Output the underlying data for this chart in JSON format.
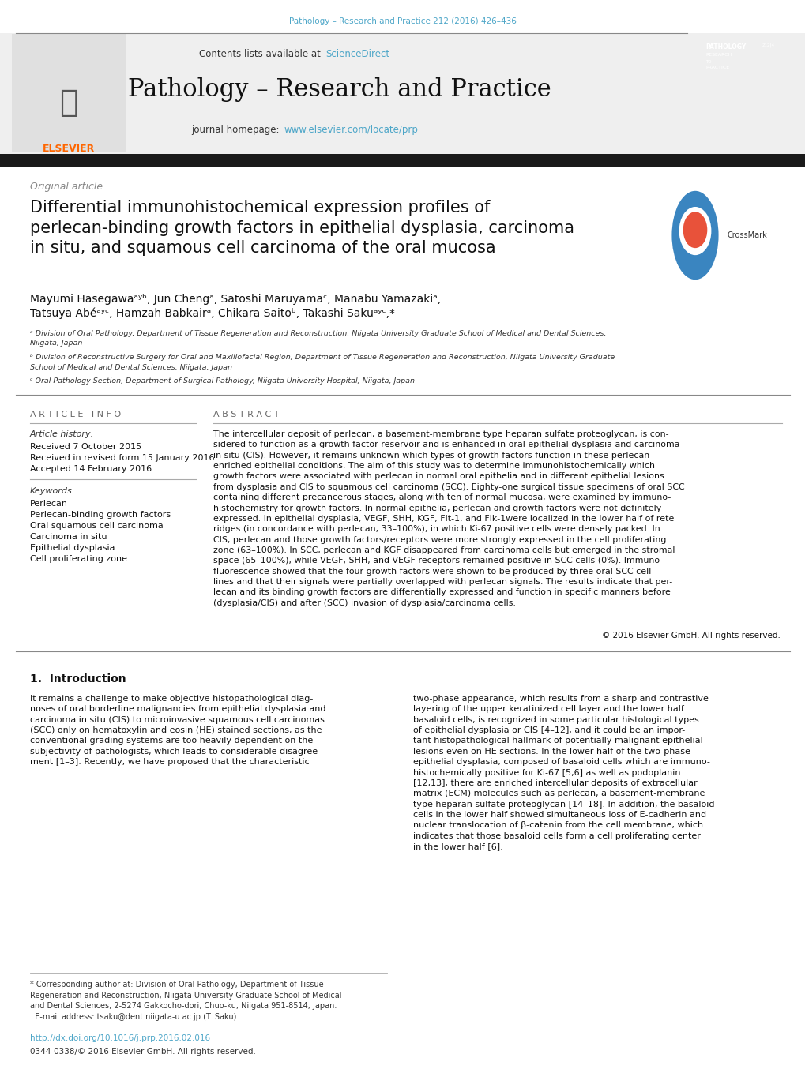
{
  "background_color": "#ffffff",
  "page_width": 10.2,
  "page_height": 13.59,
  "dpi": 100,
  "header_journal_ref": "Pathology – Research and Practice 212 (2016) 426–436",
  "header_journal_ref_color": "#4da6c8",
  "journal_name": "Pathology – Research and Practice",
  "contents_sciencedirect_color": "#4da6c8",
  "journal_homepage_color": "#4da6c8",
  "elsevier_color": "#FF6600",
  "header_band_color": "#efefef",
  "dark_band_color": "#1a1a1a",
  "original_article_text": "Original article",
  "original_article_color": "#888888",
  "article_title": "Differential immunohistochemical expression profiles of\nperlecan-binding growth factors in epithelial dysplasia, carcinoma\nin situ, and squamous cell carcinoma of the oral mucosa",
  "article_title_color": "#111111",
  "authors_line1": "Mayumi Hasegawaᵃʸᵇ, Jun Chengᵃ, Satoshi Maruyamaᶜ, Manabu Yamazakiᵃ,",
  "authors_line2": "Tatsuya Abéᵃʸᶜ, Hamzah Babkairᵃ, Chikara Saitoᵇ, Takashi Sakuᵃʸᶜ,*",
  "affil_a": "ᵃ Division of Oral Pathology, Department of Tissue Regeneration and Reconstruction, Niigata University Graduate School of Medical and Dental Sciences,\nNiigata, Japan",
  "affil_b": "ᵇ Division of Reconstructive Surgery for Oral and Maxillofacial Region, Department of Tissue Regeneration and Reconstruction, Niigata University Graduate\nSchool of Medical and Dental Sciences, Niigata, Japan",
  "affil_c": "ᶜ Oral Pathology Section, Department of Surgical Pathology, Niigata University Hospital, Niigata, Japan",
  "affil_color": "#333333",
  "article_info_title": "A R T I C L E   I N F O",
  "article_history_label": "Article history:",
  "received1": "Received 7 October 2015",
  "received2": "Received in revised form 15 January 2016",
  "accepted": "Accepted 14 February 2016",
  "keywords_label": "Keywords:",
  "keywords": [
    "Perlecan",
    "Perlecan-binding growth factors",
    "Oral squamous cell carcinoma",
    "Carcinoma in situ",
    "Epithelial dysplasia",
    "Cell proliferating zone"
  ],
  "abstract_title": "A B S T R A C T",
  "abstract_text": "The intercellular deposit of perlecan, a basement-membrane type heparan sulfate proteoglycan, is con-\nsidered to function as a growth factor reservoir and is enhanced in oral epithelial dysplasia and carcinoma\nin situ (CIS). However, it remains unknown which types of growth factors function in these perlecan-\nenriched epithelial conditions. The aim of this study was to determine immunohistochemically which\ngrowth factors were associated with perlecan in normal oral epithelia and in different epithelial lesions\nfrom dysplasia and CIS to squamous cell carcinoma (SCC). Eighty-one surgical tissue specimens of oral SCC\ncontaining different precancerous stages, along with ten of normal mucosa, were examined by immuno-\nhistochemistry for growth factors. In normal epithelia, perlecan and growth factors were not definitely\nexpressed. In epithelial dysplasia, VEGF, SHH, KGF, Flt-1, and Flk-1were localized in the lower half of rete\nridges (in concordance with perlecan, 33–100%), in which Ki-67 positive cells were densely packed. In\nCIS, perlecan and those growth factors/receptors were more strongly expressed in the cell proliferating\nzone (63–100%). In SCC, perlecan and KGF disappeared from carcinoma cells but emerged in the stromal\nspace (65–100%), while VEGF, SHH, and VEGF receptors remained positive in SCC cells (0%). Immuno-\nfluorescence showed that the four growth factors were shown to be produced by three oral SCC cell\nlines and that their signals were partially overlapped with perlecan signals. The results indicate that per-\nlecan and its binding growth factors are differentially expressed and function in specific manners before\n(dysplasia/CIS) and after (SCC) invasion of dysplasia/carcinoma cells.",
  "copyright": "© 2016 Elsevier GmbH. All rights reserved.",
  "intro_title": "1.  Introduction",
  "intro_text1": "It remains a challenge to make objective histopathological diag-\nnoses of oral borderline malignancies from epithelial dysplasia and\ncarcinoma in situ (CIS) to microinvasive squamous cell carcinomas\n(SCC) only on hematoxylin and eosin (HE) stained sections, as the\nconventional grading systems are too heavily dependent on the\nsubjectivity of pathologists, which leads to considerable disagree-\nment [1–3]. Recently, we have proposed that the characteristic",
  "intro_text2": "two-phase appearance, which results from a sharp and contrastive\nlayering of the upper keratinized cell layer and the lower half\nbasaloid cells, is recognized in some particular histological types\nof epithelial dysplasia or CIS [4–12], and it could be an impor-\ntant histopathological hallmark of potentially malignant epithelial\nlesions even on HE sections. In the lower half of the two-phase\nepithelial dysplasia, composed of basaloid cells which are immuno-\nhistochemically positive for Ki-67 [5,6] as well as podoplanin\n[12,13], there are enriched intercellular deposits of extracellular\nmatrix (ECM) molecules such as perlecan, a basement-membrane\ntype heparan sulfate proteoglycan [14–18]. In addition, the basaloid\ncells in the lower half showed simultaneous loss of E-cadherin and\nnuclear translocation of β-catenin from the cell membrane, which\nindicates that those basaloid cells form a cell proliferating center\nin the lower half [6].",
  "footnote_star": "* Corresponding author at: Division of Oral Pathology, Department of Tissue\nRegeneration and Reconstruction, Niigata University Graduate School of Medical\nand Dental Sciences, 2-5274 Gakkocho-dori, Chuo-ku, Niigata 951-8514, Japan.\n  E-mail address: tsaku@dent.niigata-u.ac.jp (T. Saku).",
  "doi_text": "http://dx.doi.org/10.1016/j.prp.2016.02.016",
  "issn_text": "0344-0338/© 2016 Elsevier GmbH. All rights reserved."
}
